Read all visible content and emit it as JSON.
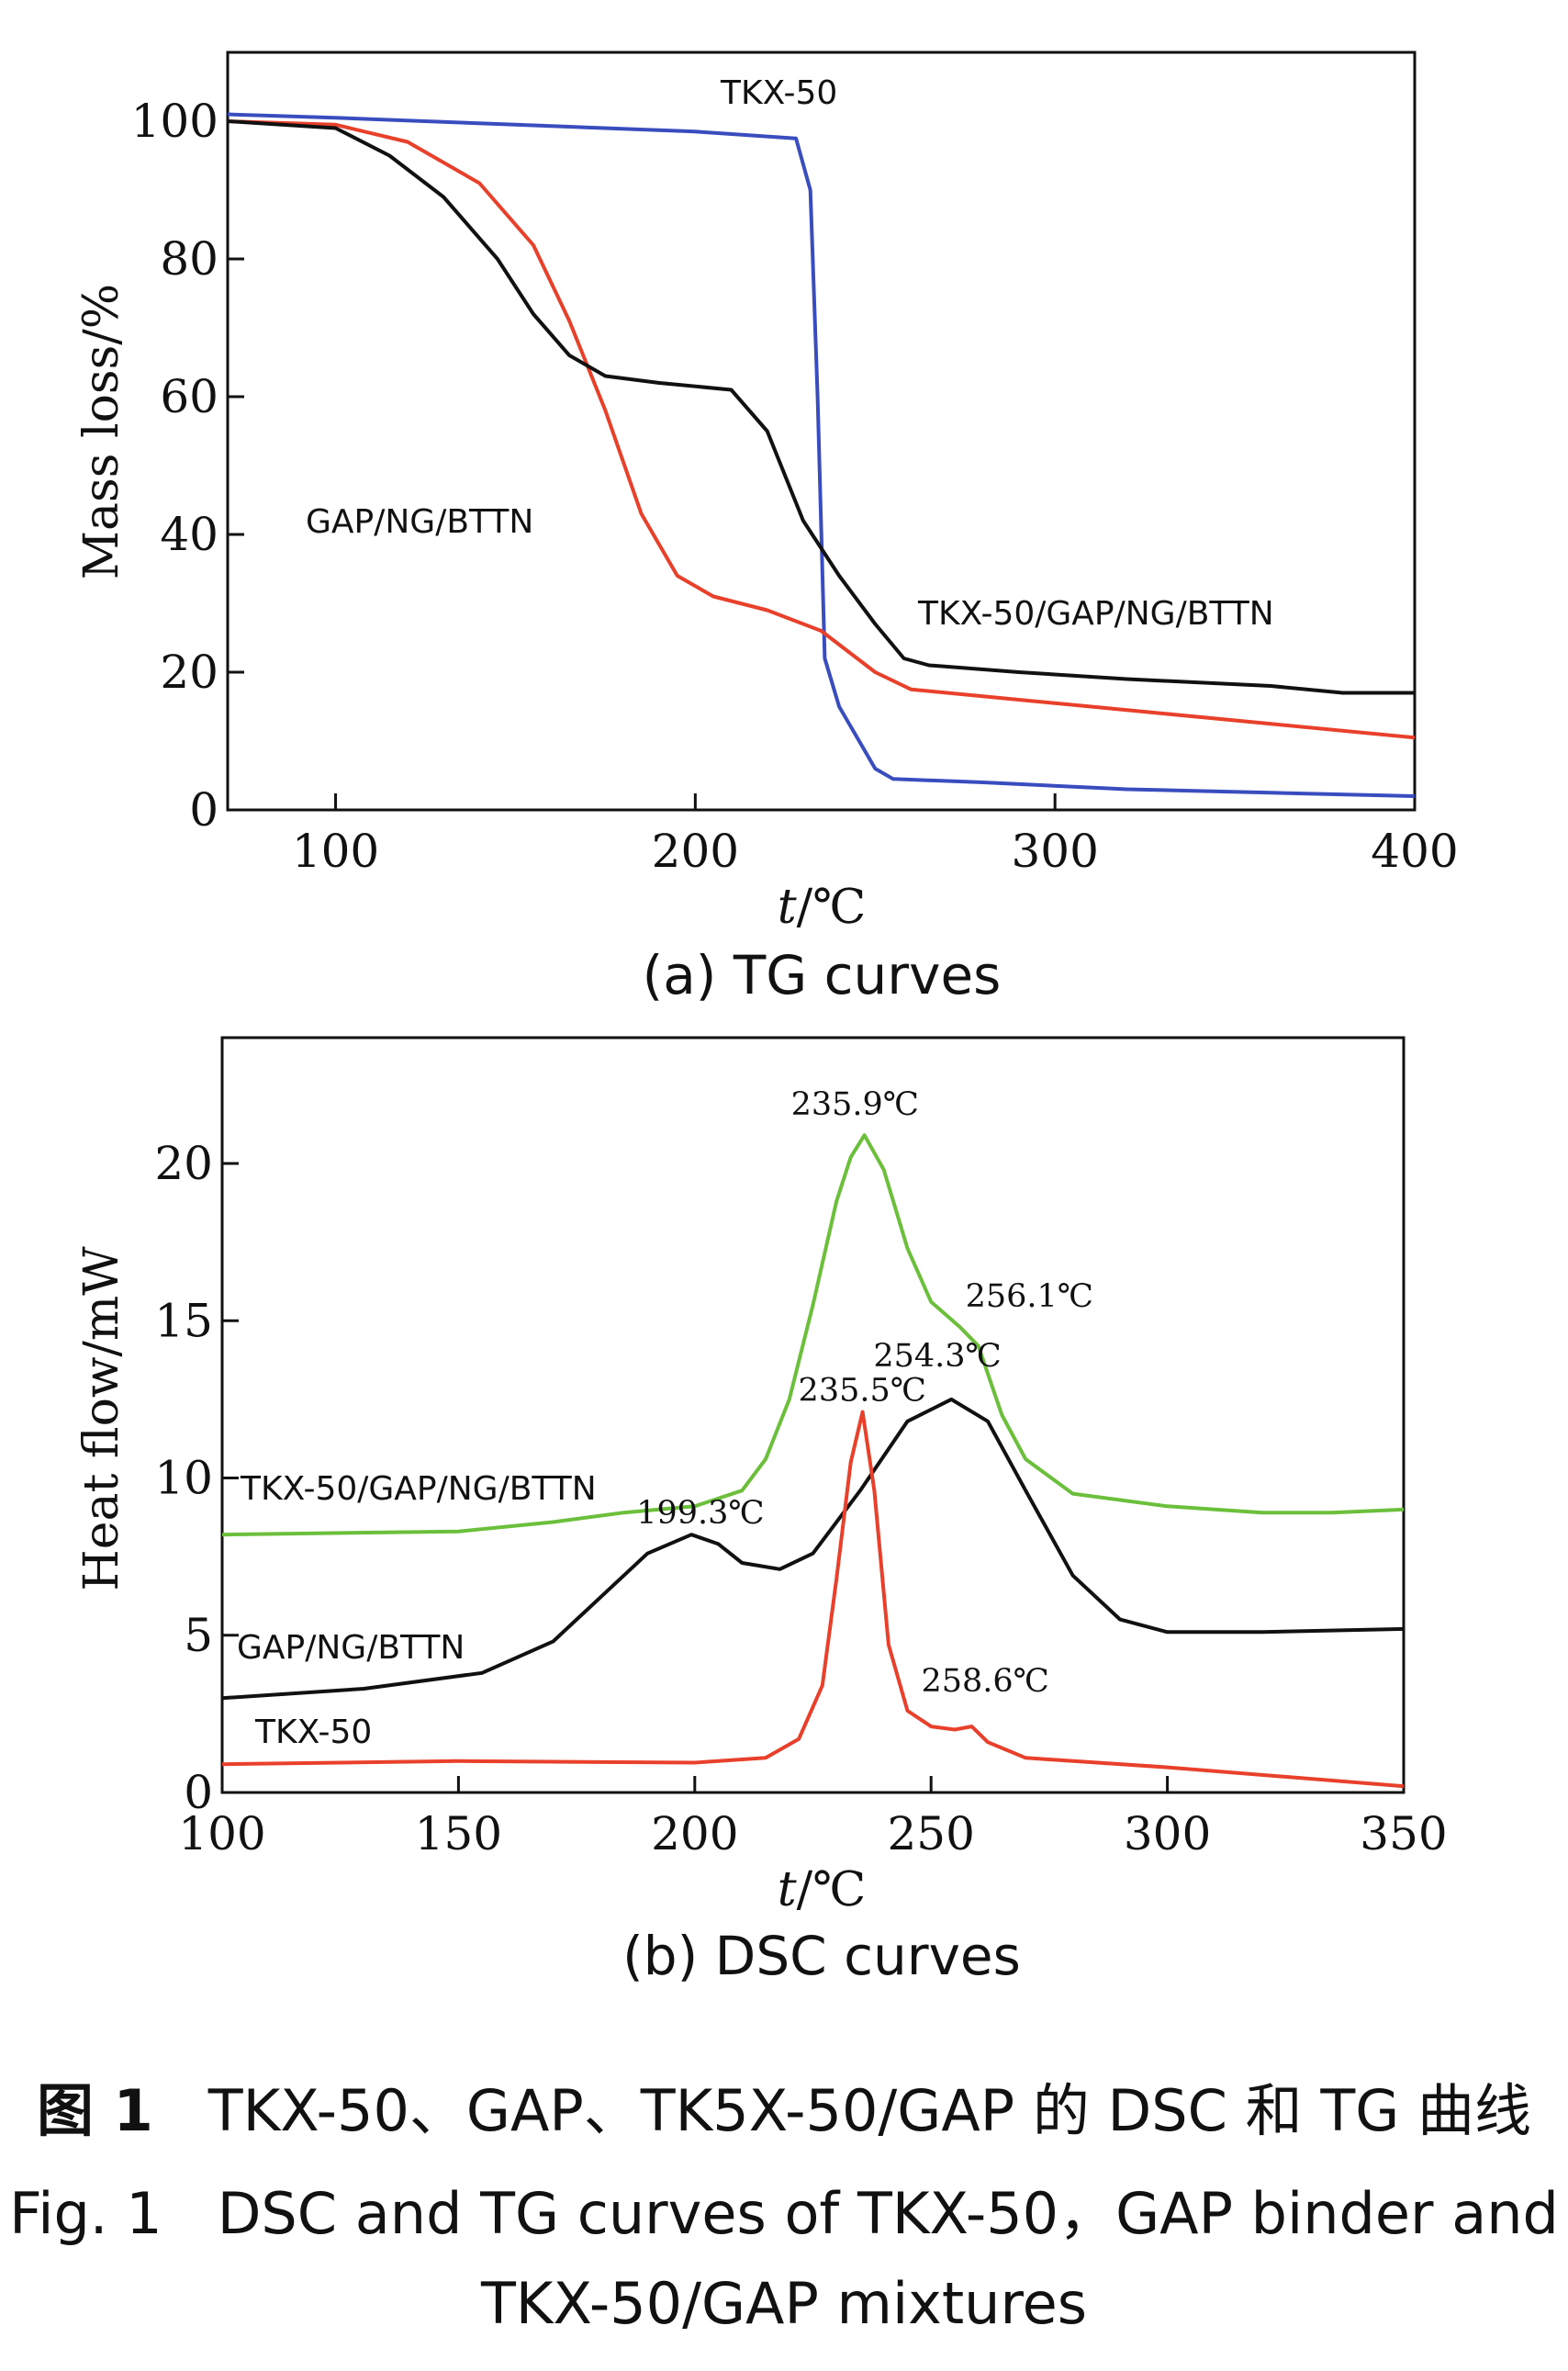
{
  "chart_data": [
    {
      "type": "line",
      "subcaption": "(a) TG curves",
      "xlabel_italic": "t",
      "xlabel_unit": "/℃",
      "ylabel": "Mass loss/%",
      "xlim": [
        70,
        400
      ],
      "ylim": [
        0,
        110
      ],
      "xticks": [
        100,
        200,
        300,
        400
      ],
      "yticks": [
        0,
        20,
        40,
        60,
        80,
        100
      ],
      "series": [
        {
          "name": "TKX-50",
          "color": "#3a4dbf",
          "x": [
            70,
            100,
            150,
            200,
            228,
            232,
            234,
            236,
            240,
            250,
            255,
            280,
            320,
            360,
            400
          ],
          "y": [
            101,
            100.5,
            99.5,
            98.5,
            97.5,
            90,
            60,
            22,
            15,
            6,
            4.5,
            4,
            3,
            2.5,
            2
          ]
        },
        {
          "name": "GAP/NG/BTTN",
          "color": "#e8402a",
          "x": [
            70,
            100,
            120,
            140,
            155,
            165,
            175,
            185,
            195,
            205,
            220,
            235,
            250,
            260,
            280,
            300,
            330,
            360,
            400
          ],
          "y": [
            100,
            99.5,
            97,
            91,
            82,
            71,
            58,
            43,
            34,
            31,
            29,
            26,
            20,
            17.5,
            16.5,
            15.5,
            14,
            12.5,
            10.5
          ]
        },
        {
          "name": "TKX-50/GAP/NG/BTTN",
          "color": "#111111",
          "x": [
            70,
            100,
            115,
            130,
            145,
            155,
            165,
            175,
            190,
            210,
            220,
            230,
            240,
            250,
            258,
            265,
            290,
            320,
            360,
            380,
            400
          ],
          "y": [
            100,
            99,
            95,
            89,
            80,
            72,
            66,
            63,
            62,
            61,
            55,
            42,
            34,
            27,
            22,
            21,
            20,
            19,
            18,
            17,
            17
          ]
        }
      ]
    },
    {
      "type": "line",
      "subcaption": "(b) DSC curves",
      "xlabel_italic": "t",
      "xlabel_unit": "/℃",
      "ylabel": "Heat flow/mW",
      "xlim": [
        100,
        350
      ],
      "ylim": [
        0,
        24
      ],
      "xticks": [
        100,
        150,
        200,
        250,
        300,
        350
      ],
      "yticks": [
        0,
        5,
        10,
        15,
        20
      ],
      "series": [
        {
          "name": "TKX-50/GAP/NG/BTTN",
          "color": "#6bbf3a",
          "x": [
            100,
            150,
            170,
            185,
            200,
            210,
            215,
            220,
            225,
            230,
            233,
            235.9,
            240,
            245,
            250,
            256.1,
            260,
            265,
            270,
            280,
            300,
            320,
            335,
            350
          ],
          "y": [
            8.2,
            8.3,
            8.6,
            8.9,
            9.1,
            9.6,
            10.6,
            12.5,
            15.5,
            18.8,
            20.2,
            20.9,
            19.8,
            17.3,
            15.6,
            14.8,
            14.2,
            12.0,
            10.6,
            9.5,
            9.1,
            8.9,
            8.9,
            9.0
          ]
        },
        {
          "name": "GAP/NG/BTTN",
          "color": "#111111",
          "x": [
            100,
            130,
            155,
            170,
            180,
            190,
            199.3,
            205,
            210,
            218,
            225,
            235,
            245,
            254.3,
            262,
            270,
            280,
            290,
            300,
            320,
            350
          ],
          "y": [
            3.0,
            3.3,
            3.8,
            4.8,
            6.2,
            7.6,
            8.2,
            7.9,
            7.3,
            7.1,
            7.6,
            9.6,
            11.8,
            12.5,
            11.8,
            9.6,
            6.9,
            5.5,
            5.1,
            5.1,
            5.2
          ]
        },
        {
          "name": "TKX-50",
          "color": "#e8402a",
          "x": [
            100,
            150,
            200,
            215,
            222,
            227,
            230,
            233,
            235.5,
            238,
            241,
            245,
            250,
            255,
            258.6,
            262,
            270,
            300,
            350
          ],
          "y": [
            0.9,
            1.0,
            0.95,
            1.1,
            1.7,
            3.4,
            6.8,
            10.5,
            12.1,
            9.6,
            4.7,
            2.6,
            2.1,
            2.0,
            2.1,
            1.6,
            1.1,
            0.8,
            0.2
          ]
        }
      ],
      "annotations": [
        {
          "text": "235.9℃",
          "x": 235.9,
          "y": 20.9
        },
        {
          "text": "256.1℃",
          "x": 256.1,
          "y": 14.8
        },
        {
          "text": "254.3℃",
          "x": 254.3,
          "y": 12.5
        },
        {
          "text": "235.5℃",
          "x": 235.5,
          "y": 12.1
        },
        {
          "text": "199.3℃",
          "x": 199.3,
          "y": 8.2
        },
        {
          "text": "258.6℃",
          "x": 258.6,
          "y": 2.1
        }
      ]
    }
  ],
  "caption": {
    "cn_label": "图 1",
    "cn_text": "TKX-50、GAP、TK5X-50/GAP 的 DSC 和 TG 曲线",
    "en_label": "Fig. 1",
    "en_text_line1": "DSC and TG curves of TKX-50，GAP binder and",
    "en_text_line2": "TKX-50/GAP mixtures"
  }
}
